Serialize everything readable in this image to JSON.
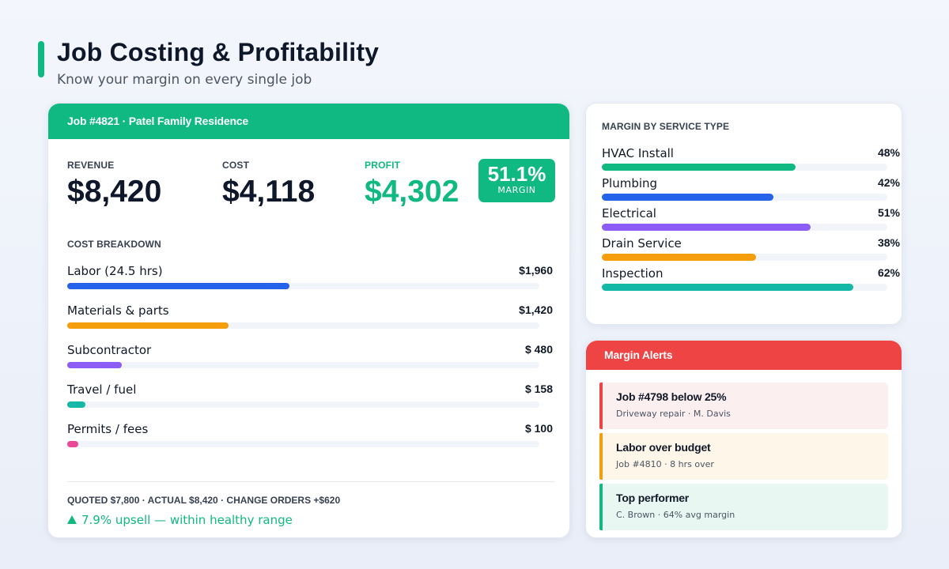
{
  "header": {
    "title": "Job Costing & Profitability",
    "subtitle": "Know your margin on every single job"
  },
  "job": {
    "title": "Job #4821 · Patel Family Residence",
    "kpis": {
      "revenue_label": "REVENUE",
      "revenue": "$8,420",
      "cost_label": "COST",
      "cost": "$4,118",
      "profit_label": "PROFIT",
      "profit": "$4,302",
      "margin": "51.1%",
      "margin_label": "MARGIN"
    },
    "breakdown_label": "COST BREAKDOWN",
    "breakdown": [
      {
        "name": "Labor (24.5 hrs)",
        "amount": "$1,960",
        "value": 1960,
        "color": "#2563eb"
      },
      {
        "name": "Materials & parts",
        "amount": "$1,420",
        "value": 1420,
        "color": "#f59e0b"
      },
      {
        "name": "Subcontractor",
        "amount": "$ 480",
        "value": 480,
        "color": "#8b5cf6"
      },
      {
        "name": "Travel / fuel",
        "amount": "$ 158",
        "value": 158,
        "color": "#14b8a6"
      },
      {
        "name": "Permits / fees",
        "amount": "$ 100",
        "value": 100,
        "color": "#ec4899"
      }
    ],
    "summary": "QUOTED $7,800 · ACTUAL $8,420 · CHANGE ORDERS +$620",
    "upsell": "7.9% upsell — within healthy range"
  },
  "service_margin": {
    "label": "MARGIN BY SERVICE TYPE",
    "items": [
      {
        "name": "HVAC Install",
        "pct_label": "48%",
        "fill_fraction": 0.68,
        "color": "#10b981"
      },
      {
        "name": "Plumbing",
        "pct_label": "42%",
        "fill_fraction": 0.6,
        "color": "#2563eb"
      },
      {
        "name": "Electrical",
        "pct_label": "51%",
        "fill_fraction": 0.73,
        "color": "#8b5cf6"
      },
      {
        "name": "Drain Service",
        "pct_label": "38%",
        "fill_fraction": 0.54,
        "color": "#f59e0b"
      },
      {
        "name": "Inspection",
        "pct_label": "62%",
        "fill_fraction": 0.88,
        "color": "#14b8a6"
      }
    ]
  },
  "alerts": {
    "title": "Margin Alerts",
    "items": [
      {
        "title": "Job #4798 below 25%",
        "desc": "Driveway repair · M. Davis",
        "bg": "#fcefef",
        "edge": "#ef4444"
      },
      {
        "title": "Labor over budget",
        "desc": "Job #4810 · 8 hrs over",
        "bg": "#fdf6e9",
        "edge": "#f59e0b"
      },
      {
        "title": "Top performer",
        "desc": "C. Brown · 64% avg margin",
        "bg": "#e8f7f1",
        "edge": "#10b981"
      }
    ]
  }
}
